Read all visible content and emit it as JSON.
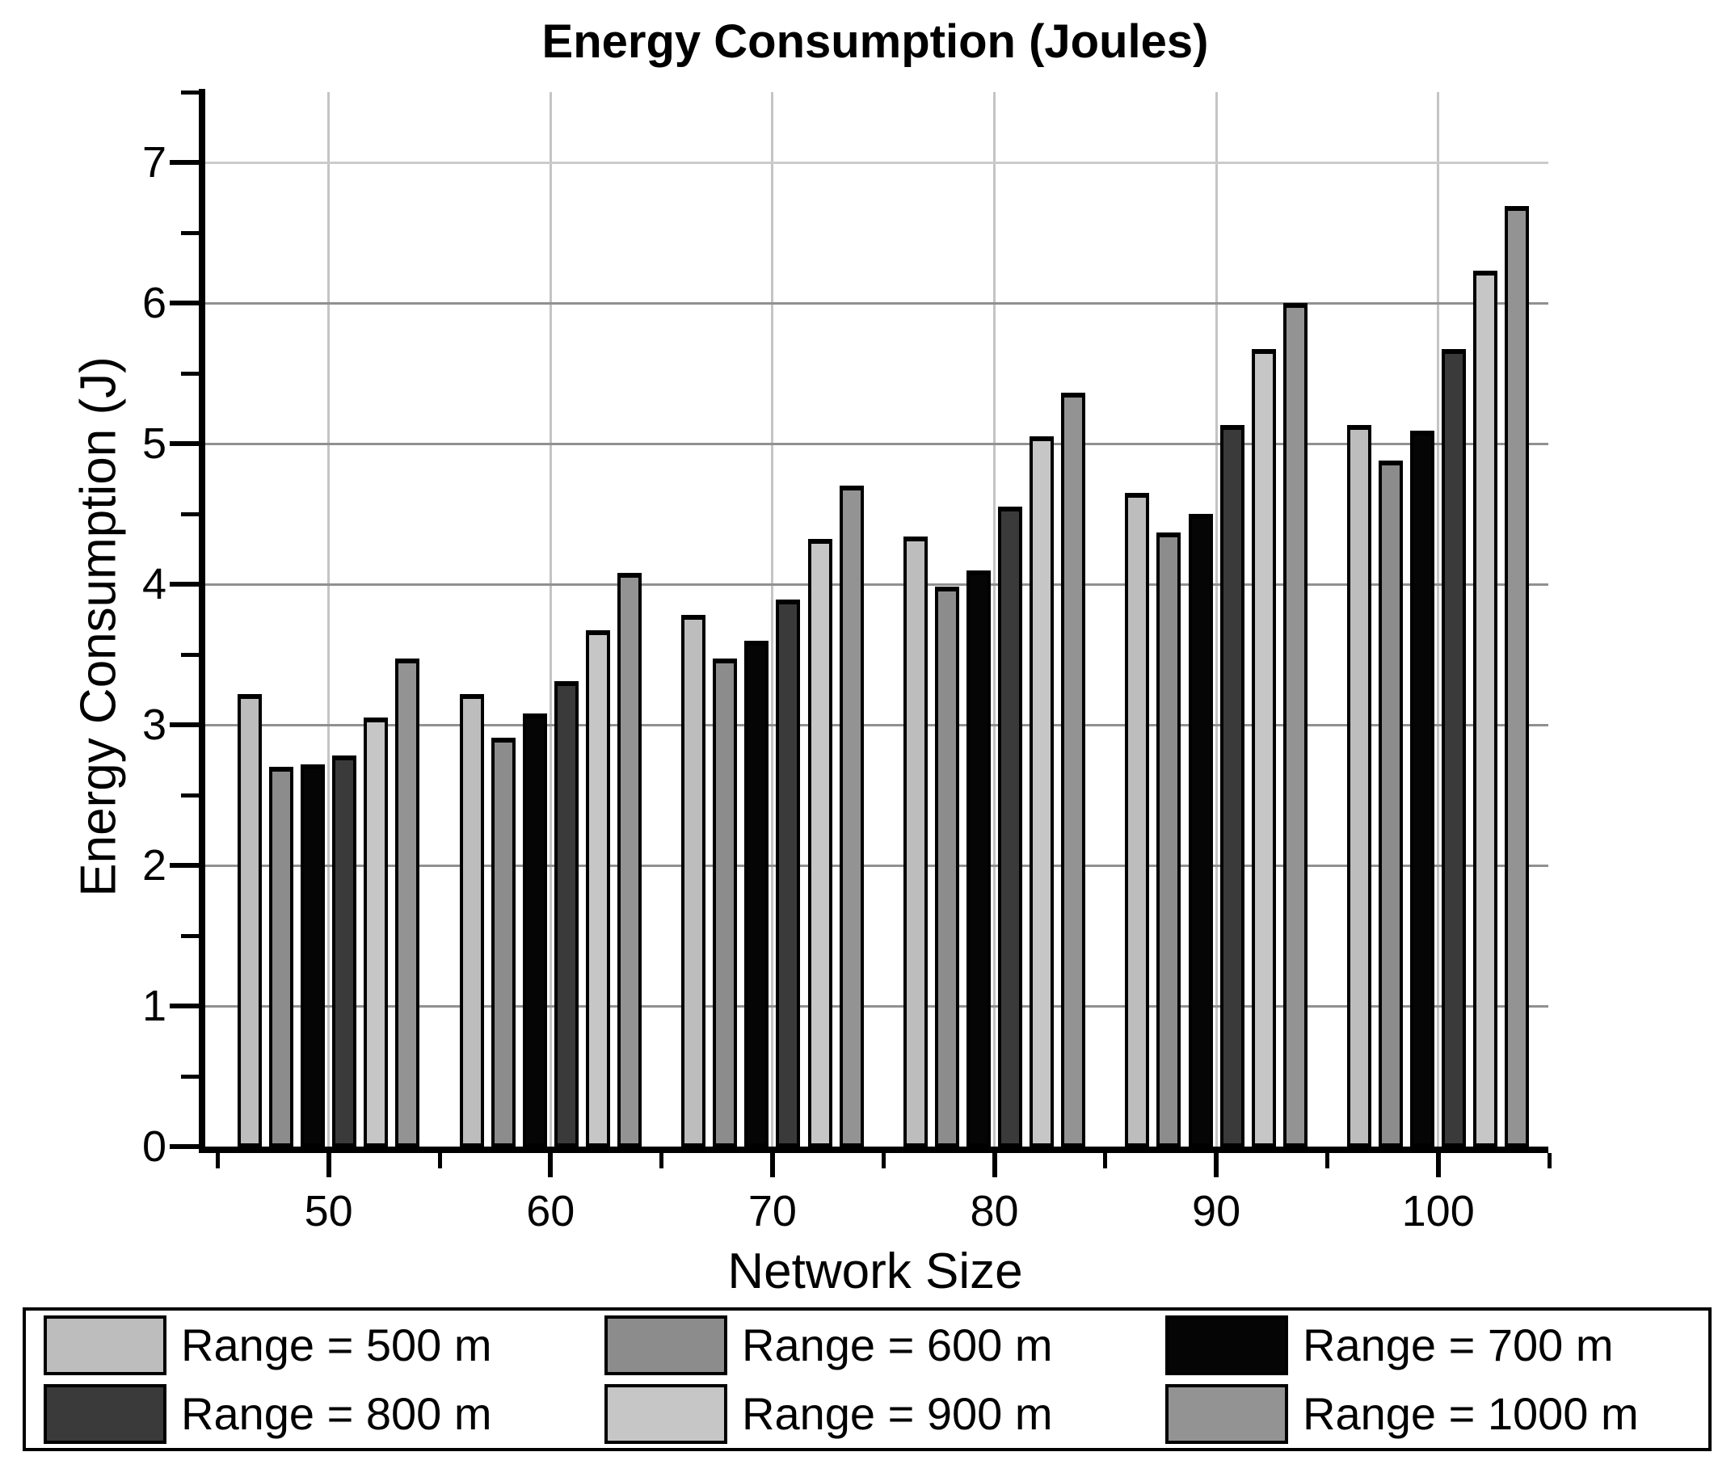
{
  "chart_data": {
    "type": "bar",
    "title": "Energy Consumption (Joules)",
    "xlabel": "Network Size",
    "ylabel": "Energy Consumption (J)",
    "categories": [
      "50",
      "60",
      "70",
      "80",
      "90",
      "100"
    ],
    "series": [
      {
        "name": "Range = 500 m",
        "color": "#bdbdbd",
        "values": [
          3.22,
          3.22,
          3.78,
          4.34,
          4.65,
          5.13
        ]
      },
      {
        "name": "Range = 600 m",
        "color": "#8c8c8c",
        "values": [
          2.7,
          2.91,
          3.47,
          3.98,
          4.37,
          4.88
        ]
      },
      {
        "name": "Range = 700 m",
        "color": "#050505",
        "values": [
          2.72,
          3.08,
          3.6,
          4.1,
          4.5,
          5.09
        ]
      },
      {
        "name": "Range = 800 m",
        "color": "#3a3a3a",
        "values": [
          2.78,
          3.31,
          3.89,
          4.55,
          5.13,
          5.67
        ]
      },
      {
        "name": "Range = 900 m",
        "color": "#c6c6c6",
        "values": [
          3.05,
          3.67,
          4.32,
          5.05,
          5.67,
          6.23
        ]
      },
      {
        "name": "Range = 1000 m",
        "color": "#939393",
        "values": [
          3.47,
          4.08,
          4.7,
          5.36,
          6.0,
          6.69
        ]
      }
    ],
    "ylim": [
      0,
      7.5
    ],
    "yticks": [
      0,
      1,
      2,
      3,
      4,
      5,
      6,
      7
    ],
    "grid": true,
    "legend_position": "bottom",
    "gridline_color_h": "#909090",
    "gridline_color_h_top": "#cbcbcb",
    "gridline_color_v": "#c4c4c4"
  }
}
